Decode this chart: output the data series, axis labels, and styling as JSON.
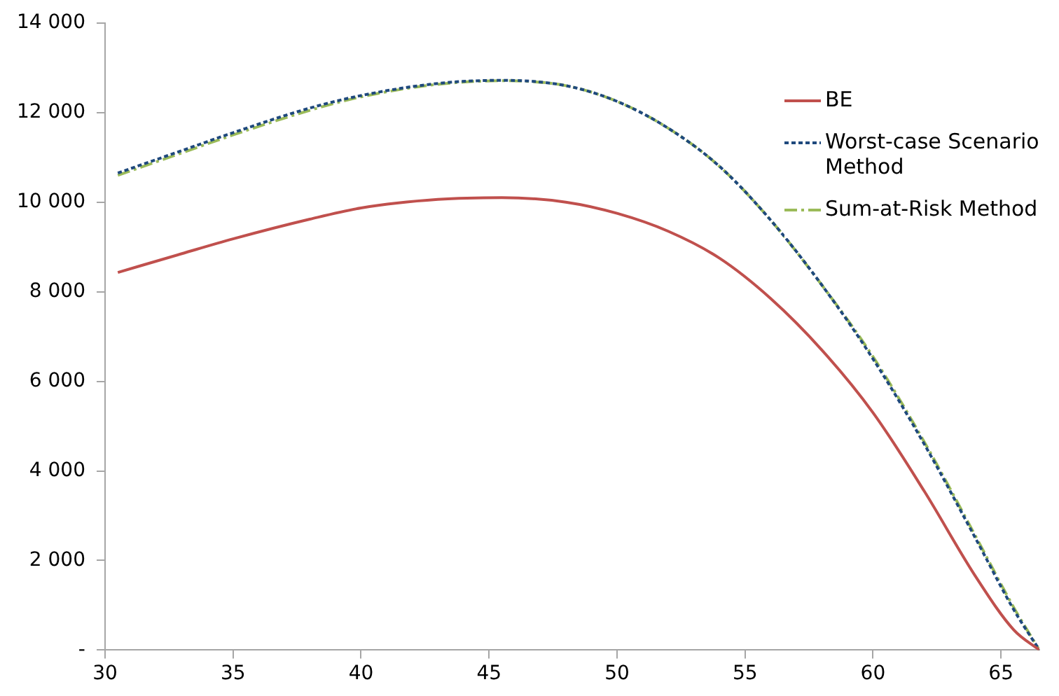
{
  "chart_data": {
    "type": "line",
    "x": [
      30.5,
      33,
      35,
      38,
      40,
      43,
      45.5,
      48,
      50,
      52,
      54,
      56,
      58,
      60,
      62,
      64,
      65.5,
      66.5
    ],
    "series": [
      {
        "name": "BE",
        "color": "#c0504d",
        "line_style": "solid",
        "values": [
          8430,
          8850,
          9180,
          9620,
          9870,
          10060,
          10100,
          10000,
          9750,
          9350,
          8750,
          7850,
          6700,
          5300,
          3550,
          1650,
          450,
          0
        ]
      },
      {
        "name": "Worst-case Scenario Method",
        "color": "#1f497d",
        "line_style": "dotted",
        "values": [
          10650,
          11150,
          11550,
          12100,
          12380,
          12650,
          12720,
          12600,
          12250,
          11650,
          10800,
          9600,
          8150,
          6500,
          4600,
          2500,
          900,
          0
        ]
      },
      {
        "name": "Sum-at-Risk Method",
        "color": "#9bbb59",
        "line_style": "dashed",
        "values": [
          10600,
          11100,
          11500,
          12050,
          12350,
          12630,
          12710,
          12600,
          12250,
          11650,
          10800,
          9600,
          8150,
          6550,
          4650,
          2550,
          950,
          0
        ]
      }
    ],
    "xlim": [
      30,
      66.5
    ],
    "xticks": [
      30,
      35,
      40,
      45,
      50,
      55,
      60,
      65
    ],
    "ylim": [
      0,
      14000
    ],
    "yticks": [
      {
        "value": 0,
        "label": "-"
      },
      {
        "value": 2000,
        "label": "2 000"
      },
      {
        "value": 4000,
        "label": "4 000"
      },
      {
        "value": 6000,
        "label": "6 000"
      },
      {
        "value": 8000,
        "label": "8 000"
      },
      {
        "value": 10000,
        "label": "10 000"
      },
      {
        "value": 12000,
        "label": "12 000"
      },
      {
        "value": 14000,
        "label": "14 000"
      }
    ],
    "grid": false,
    "legend": "top right",
    "marker": "none"
  }
}
